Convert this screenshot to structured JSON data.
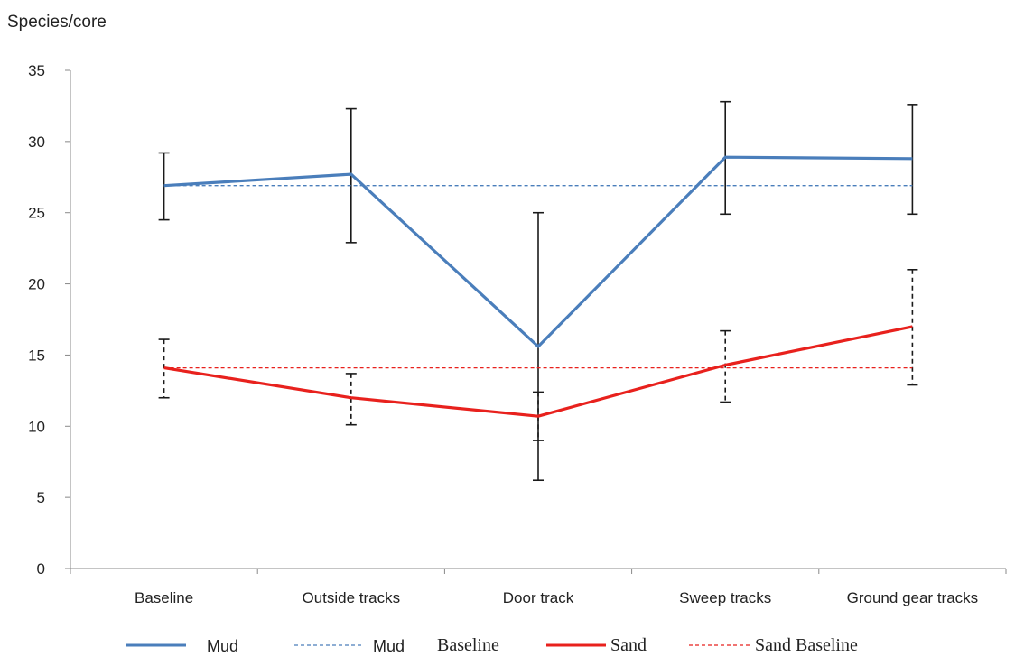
{
  "chart_data": {
    "type": "line",
    "ylabel": "Species/core",
    "ylim": [
      0,
      35
    ],
    "yticks": [
      0,
      5,
      10,
      15,
      20,
      25,
      30,
      35
    ],
    "categories": [
      "Baseline",
      "Outside tracks",
      "Door track",
      "Sweep tracks",
      "Ground gear tracks"
    ],
    "series": [
      {
        "key": "mud",
        "color": "#4a7ebb",
        "values": [
          26.9,
          27.7,
          15.6,
          28.9,
          28.8
        ],
        "err_low": [
          24.5,
          22.9,
          6.2,
          24.9,
          24.9
        ],
        "err_high": [
          29.2,
          32.3,
          25.0,
          32.8,
          32.6
        ],
        "err_style": "solid"
      },
      {
        "key": "mud_baseline",
        "color": "#4a7ebb",
        "values": [
          26.9,
          26.9,
          26.9,
          26.9,
          26.9
        ],
        "dashed": true
      },
      {
        "key": "sand",
        "color": "#e8211d",
        "values": [
          14.1,
          12.0,
          10.7,
          14.3,
          17.0
        ],
        "err_low": [
          12.0,
          10.1,
          9.0,
          11.7,
          12.9
        ],
        "err_high": [
          16.1,
          13.7,
          12.4,
          16.7,
          21.0
        ],
        "err_style": "dashed"
      },
      {
        "key": "sand_baseline",
        "color": "#e8211d",
        "values": [
          14.1,
          14.1,
          14.1,
          14.1,
          14.1
        ],
        "dashed": true
      }
    ],
    "legend": {
      "mud": "Mud",
      "mud_baseline_a": "Mud",
      "mud_baseline_b": "Baseline",
      "sand": "Sand",
      "sand_baseline": "Sand Baseline"
    },
    "legend_position": "bottom",
    "grid": false
  }
}
